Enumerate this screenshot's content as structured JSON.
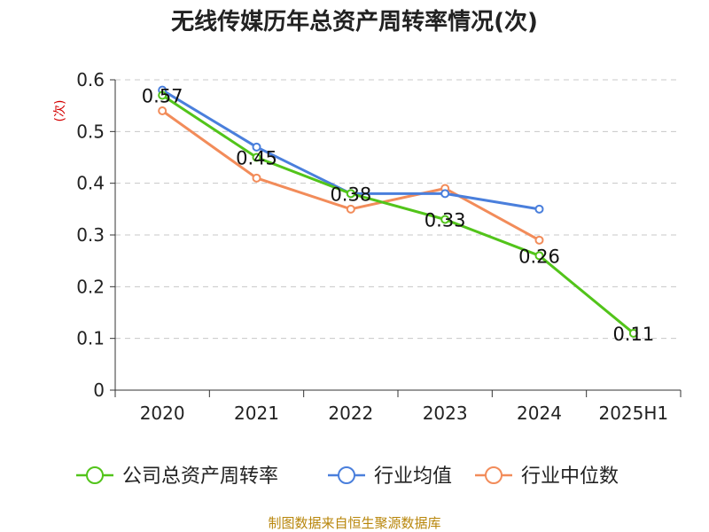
{
  "chart_data": {
    "type": "line",
    "title": "无线传媒历年总资产周转率情况(次)",
    "ylabel": "(次)",
    "xlabel": "",
    "categories": [
      "2020",
      "2021",
      "2022",
      "2023",
      "2024",
      "2025H1"
    ],
    "ylim": [
      0,
      0.6
    ],
    "yticks": [
      "0",
      "0.1",
      "0.2",
      "0.3",
      "0.4",
      "0.5",
      "0.6"
    ],
    "grid": true,
    "legend_position": "bottom",
    "series": [
      {
        "name": "公司总资产周转率",
        "color": "#52c41a",
        "values": [
          0.57,
          0.45,
          0.38,
          0.33,
          0.26,
          0.11
        ],
        "labels": [
          "0.57",
          "0.45",
          "0.38",
          "0.33",
          "0.26",
          "0.11"
        ]
      },
      {
        "name": "行业均值",
        "color": "#4a7fdc",
        "values": [
          0.58,
          0.47,
          0.38,
          0.38,
          0.35,
          null
        ]
      },
      {
        "name": "行业中位数",
        "color": "#f28c5a",
        "values": [
          0.54,
          0.41,
          0.35,
          0.39,
          0.29,
          null
        ]
      }
    ]
  },
  "source": "制图数据来自恒生聚源数据库"
}
